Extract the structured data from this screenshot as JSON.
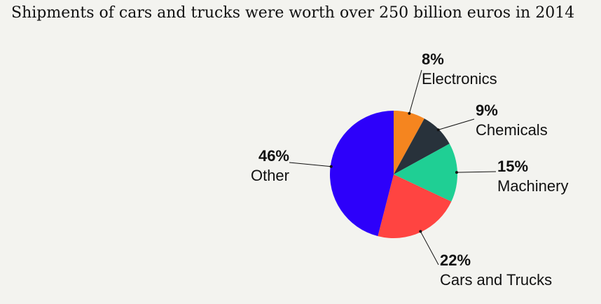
{
  "chart_data": {
    "type": "pie",
    "title": "Shipments of cars and trucks were worth over 250 billion euros in 2014",
    "slices": [
      {
        "label": "Electronics",
        "pct_label": "8%",
        "value": 8,
        "color": "#f5851f"
      },
      {
        "label": "Chemicals",
        "pct_label": "9%",
        "value": 9,
        "color": "#28323b"
      },
      {
        "label": "Machinery",
        "pct_label": "15%",
        "value": 15,
        "color": "#1fcf94"
      },
      {
        "label": "Cars and Trucks",
        "pct_label": "22%",
        "value": 22,
        "color": "#ff4441"
      },
      {
        "label": "Other",
        "pct_label": "46%",
        "value": 46,
        "color": "#2d00fa"
      }
    ]
  }
}
